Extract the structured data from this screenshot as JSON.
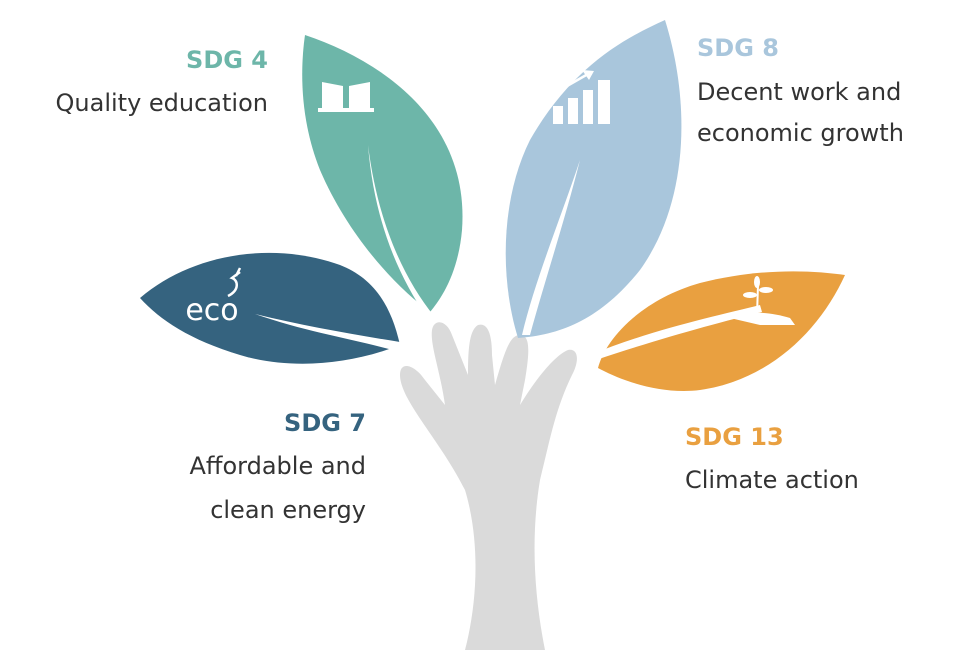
{
  "nodes": [
    {
      "code": "SDG 4",
      "lines": [
        "Quality education"
      ],
      "color": "#6db6a9"
    },
    {
      "code": "SDG 7",
      "lines": [
        "Affordable and",
        "clean energy"
      ],
      "color": "#35637f",
      "icon_text": "eco"
    },
    {
      "code": "SDG 8",
      "lines": [
        "Decent work and",
        "economic growth"
      ],
      "color": "#a9c6dc"
    },
    {
      "code": "SDG 13",
      "lines": [
        "Climate action"
      ],
      "color": "#e9a040"
    }
  ]
}
